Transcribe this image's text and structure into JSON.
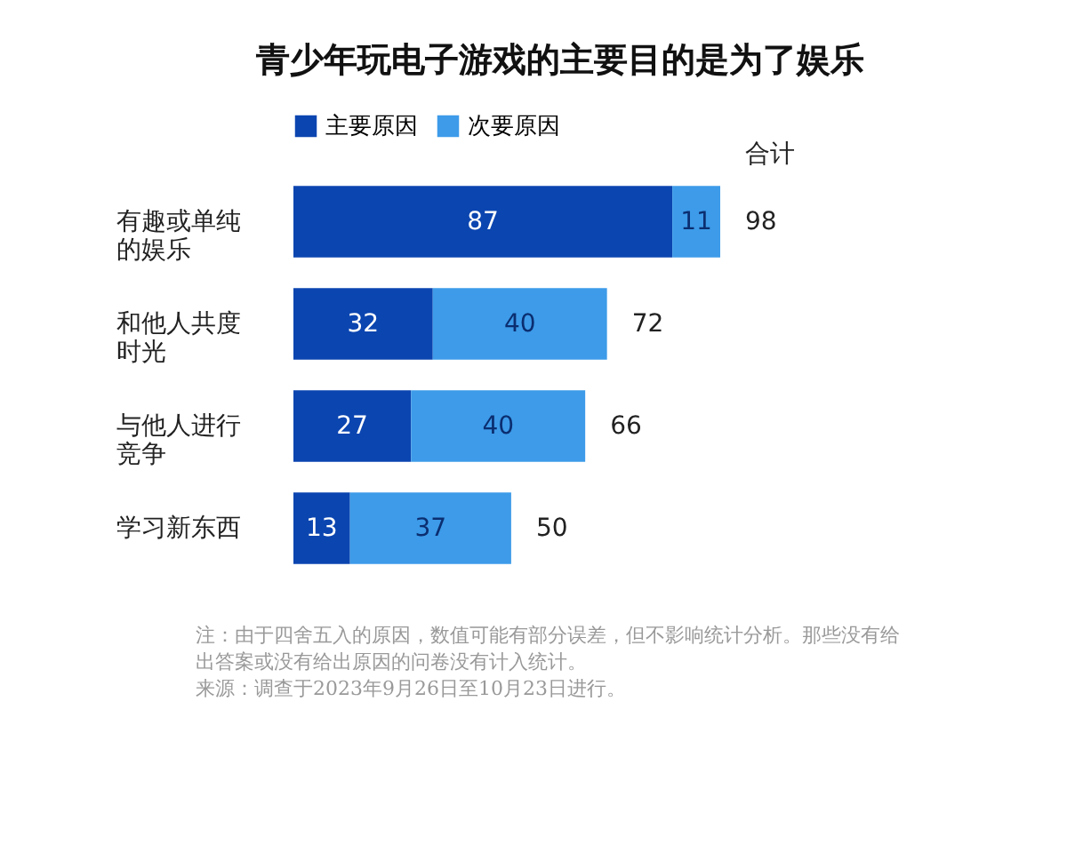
{
  "chart_data": {
    "type": "bar",
    "orientation": "horizontal",
    "stacked": true,
    "title": "青少年玩电子游戏的主要目的是为了娱乐",
    "categories": [
      "有趣或单纯的娱乐",
      "和他人共度时光",
      "与他人进行竞争",
      "学习新东西"
    ],
    "series": [
      {
        "name": "主要原因",
        "color": "#0b45b0",
        "values": [
          87,
          32,
          27,
          13
        ]
      },
      {
        "name": "次要原因",
        "color": "#3d9be9",
        "values": [
          11,
          40,
          40,
          37
        ]
      }
    ],
    "data_labels": true,
    "totals": [
      "98",
      "72",
      "66",
      "50"
    ],
    "legend": "top",
    "annotations": [
      "合计",
      "注：由于四舍五入的原因，数值可能有部分误差，但不影响统计分析。那些没有给出答案或没有给出原因的问卷没有计入统计。",
      "来源：调查于2023年9月26日至10月23日进行。"
    ]
  }
}
